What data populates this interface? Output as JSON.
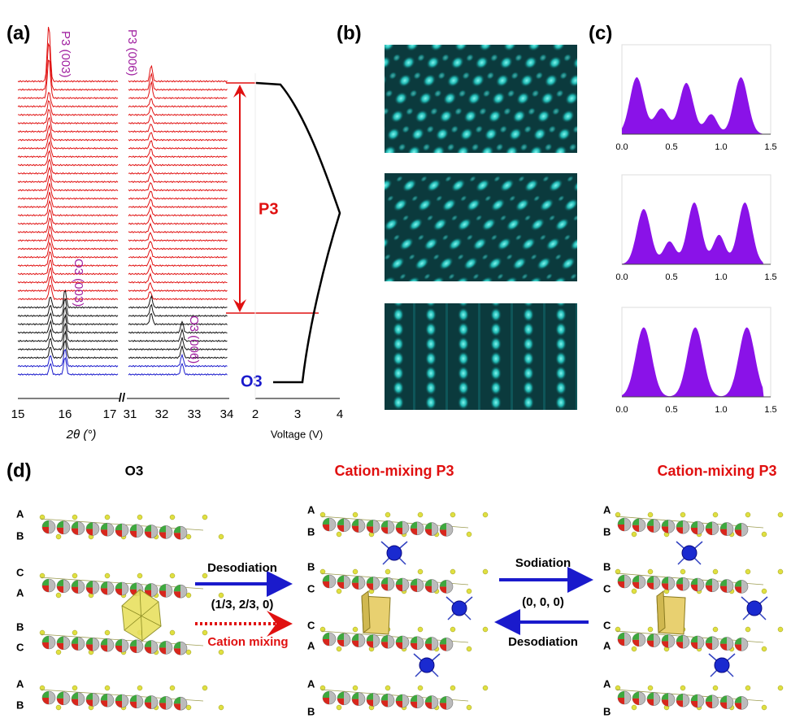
{
  "panels": {
    "a": {
      "label": "(a)",
      "peak_labels": [
        "P3 (003)",
        "P3 (006)",
        "O3 (003)",
        "O3 (006)"
      ],
      "phase_labels": [
        "P3",
        "O3"
      ],
      "x_ticks": [
        "15",
        "16",
        "17",
        "31",
        "32",
        "33",
        "34"
      ],
      "axis_break": "//",
      "x_label": "2θ (°)",
      "voltage_ticks": [
        "2",
        "3",
        "4"
      ],
      "voltage_label": "Voltage (V)"
    },
    "b": {
      "label": "(b)"
    },
    "c": {
      "label": "(c)",
      "plots": [
        {
          "ticks": [
            "0.0",
            "0.5",
            "1.0",
            "1.5"
          ]
        },
        {
          "ticks": [
            "0.0",
            "0.5",
            "1.0",
            "1.5"
          ]
        },
        {
          "ticks": [
            "0.0",
            "0.5",
            "1.0",
            "1.5"
          ]
        }
      ]
    },
    "d": {
      "label": "(d)",
      "structures": [
        {
          "title": "O3",
          "stacking": [
            "A",
            "B",
            "C",
            "A",
            "B",
            "C",
            "A",
            "B"
          ]
        },
        {
          "title": "Cation-mixing P3",
          "stacking": [
            "A",
            "B",
            "B",
            "C",
            "C",
            "A",
            "A",
            "B"
          ]
        },
        {
          "title": "Cation-mixing P3",
          "stacking": [
            "A",
            "B",
            "B",
            "C",
            "C",
            "A",
            "A",
            "B"
          ]
        }
      ],
      "arrows": [
        {
          "above": "Desodiation",
          "below": "(1/3, 2/3, 0)",
          "bottom": "Cation mixing"
        },
        {
          "above": "Sodiation",
          "below": "(0, 0, 0)",
          "bottom": "Desodiation"
        }
      ]
    }
  }
}
